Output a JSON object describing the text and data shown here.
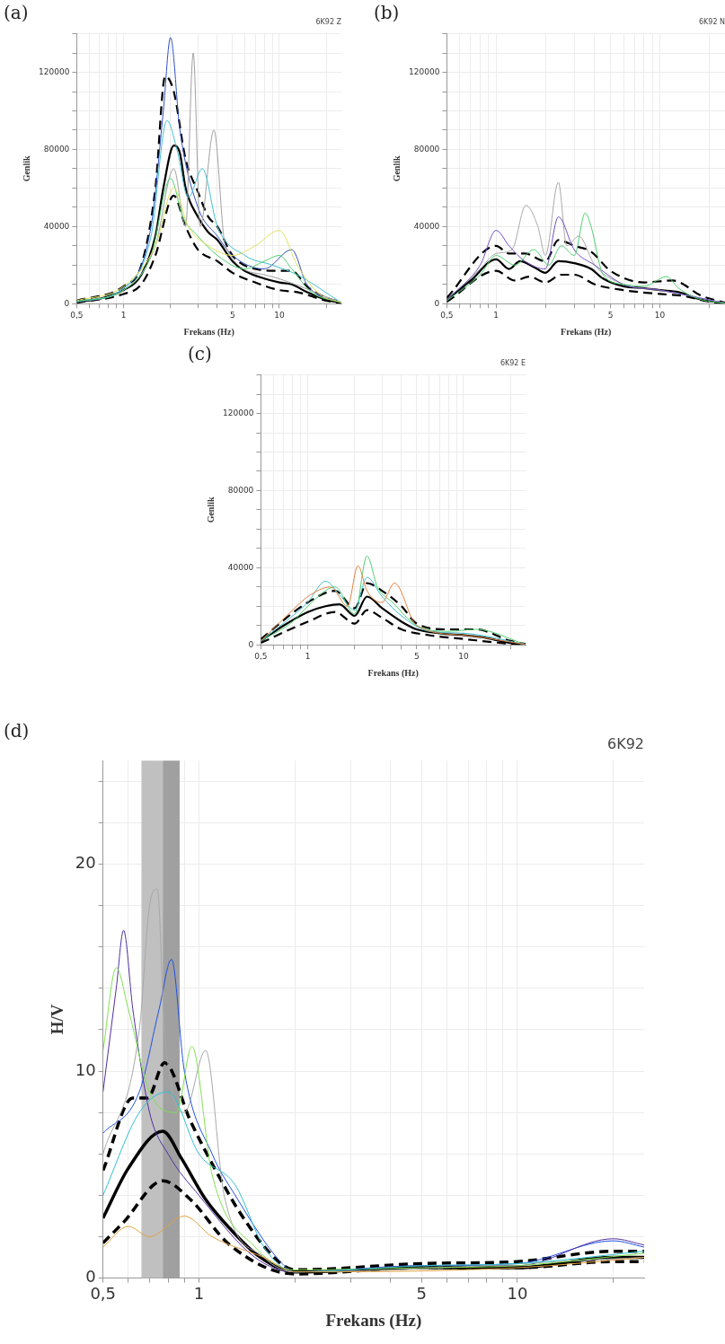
{
  "chart_data": [
    {
      "type": "line",
      "title": "6K92 Z",
      "annotations": [
        "(a)"
      ],
      "xlabel": "Frekans (Hz)",
      "ylabel": "Genlik",
      "log": "x",
      "grid": true,
      "marker": "none",
      "legend": false,
      "xlim": [
        0.5,
        25
      ],
      "xticks": [
        {
          "value": 0.5,
          "label": "0,5"
        },
        {
          "value": 0.6,
          "label": null
        },
        {
          "value": 0.7,
          "label": null
        },
        {
          "value": 0.8,
          "label": null
        },
        {
          "value": 0.9,
          "label": null
        },
        1,
        {
          "value": 2,
          "label": null
        },
        {
          "value": 3,
          "label": null
        },
        {
          "value": 4,
          "label": null
        },
        5,
        {
          "value": 6,
          "label": null
        },
        {
          "value": 7,
          "label": null
        },
        {
          "value": 8,
          "label": null
        },
        {
          "value": 9,
          "label": null
        },
        10,
        {
          "value": 20,
          "label": null
        }
      ],
      "ylim": [
        0,
        140000
      ],
      "yticks": [
        0,
        {
          "value": 10000,
          "label": null
        },
        {
          "value": 20000,
          "label": null
        },
        {
          "value": 30000,
          "label": null
        },
        40000,
        {
          "value": 50000,
          "label": null
        },
        {
          "value": 60000,
          "label": null
        },
        {
          "value": 70000,
          "label": null
        },
        80000,
        {
          "value": 90000,
          "label": null
        },
        {
          "value": 100000,
          "label": null
        },
        {
          "value": 110000,
          "label": null
        },
        120000,
        {
          "value": 130000,
          "label": null
        },
        {
          "value": 140000,
          "label": null
        }
      ],
      "series": [
        {
          "color": "#e0e060",
          "x": [
            0.5,
            1,
            1.6,
            2.1,
            2.6,
            3.5,
            5,
            7,
            10,
            13,
            18,
            25
          ],
          "values": [
            1500,
            9000,
            30000,
            60000,
            40000,
            30000,
            25000,
            30000,
            38000,
            20000,
            5000,
            500
          ]
        },
        {
          "color": "#50d070",
          "x": [
            0.5,
            1,
            1.5,
            2.0,
            2.4,
            3,
            4,
            6,
            8,
            10,
            12,
            16,
            25
          ],
          "values": [
            1000,
            7000,
            25000,
            65000,
            45000,
            35000,
            25000,
            18000,
            22000,
            25000,
            18000,
            6000,
            500
          ]
        },
        {
          "color": "#40c0d0",
          "x": [
            0.5,
            1,
            1.5,
            1.9,
            2.2,
            2.6,
            3.2,
            4,
            6,
            9,
            13,
            25
          ],
          "values": [
            1000,
            8000,
            35000,
            95000,
            80000,
            55000,
            70000,
            40000,
            25000,
            20000,
            15000,
            500
          ]
        },
        {
          "color": "#a0a0a0",
          "x": [
            0.5,
            1,
            1.6,
            2.1,
            2.5,
            2.8,
            3.1,
            3.8,
            4.5,
            8,
            25
          ],
          "values": [
            1000,
            7000,
            30000,
            70000,
            40000,
            130000,
            40000,
            90000,
            30000,
            15000,
            500
          ]
        },
        {
          "color": "#3050c0",
          "x": [
            0.5,
            1,
            1.5,
            1.8,
            2.0,
            2.3,
            3,
            4,
            5,
            8,
            12,
            15,
            25
          ],
          "values": [
            800,
            8000,
            40000,
            100000,
            138000,
            90000,
            50000,
            35000,
            25000,
            18000,
            28000,
            10000,
            500
          ]
        },
        {
          "color": "#000000",
          "line_style": "dashed",
          "x": [
            0.5,
            1,
            1.3,
            1.6,
            1.85,
            2.1,
            2.5,
            3,
            3.5,
            4,
            5,
            7,
            10,
            12,
            15,
            20,
            25
          ],
          "values": [
            1500,
            9000,
            20000,
            60000,
            118000,
            110000,
            75000,
            58000,
            45000,
            40000,
            25000,
            18000,
            17000,
            17000,
            9000,
            3000,
            800
          ]
        },
        {
          "color": "#000000",
          "line_style": "dashed",
          "x": [
            0.5,
            1,
            1.3,
            1.6,
            2.1,
            2.5,
            3,
            4,
            5,
            7,
            10,
            13,
            20,
            25
          ],
          "values": [
            500,
            5000,
            10000,
            25000,
            56000,
            40000,
            28000,
            22000,
            16000,
            11000,
            7000,
            6000,
            1500,
            300
          ]
        },
        {
          "color": "#000000",
          "line_style": "solid",
          "x": [
            0.5,
            0.7,
            1,
            1.3,
            1.6,
            1.8,
            2.1,
            2.3,
            2.5,
            3,
            3.5,
            4,
            5,
            6,
            8,
            10,
            12,
            15,
            20,
            25
          ],
          "values": [
            1000,
            2500,
            7000,
            15000,
            35000,
            60000,
            82000,
            78000,
            60000,
            45000,
            37000,
            33000,
            22000,
            17000,
            13000,
            11000,
            10000,
            6000,
            2000,
            500
          ]
        }
      ]
    },
    {
      "type": "line",
      "title": "6K92 N",
      "annotations": [
        "(b)"
      ],
      "xlabel": "Frekans (Hz)",
      "ylabel": "Genlik",
      "log": "x",
      "grid": true,
      "marker": "none",
      "legend": false,
      "xlim": [
        0.5,
        25
      ],
      "xticks": [
        {
          "value": 0.5,
          "label": "0,5"
        },
        {
          "value": 0.6,
          "label": null
        },
        {
          "value": 0.7,
          "label": null
        },
        {
          "value": 0.8,
          "label": null
        },
        {
          "value": 0.9,
          "label": null
        },
        1,
        {
          "value": 2,
          "label": null
        },
        {
          "value": 3,
          "label": null
        },
        {
          "value": 4,
          "label": null
        },
        5,
        {
          "value": 6,
          "label": null
        },
        {
          "value": 7,
          "label": null
        },
        {
          "value": 8,
          "label": null
        },
        {
          "value": 9,
          "label": null
        },
        10,
        {
          "value": 20,
          "label": null
        }
      ],
      "ylim": [
        0,
        140000
      ],
      "yticks": [
        0,
        {
          "value": 10000,
          "label": null
        },
        {
          "value": 20000,
          "label": null
        },
        {
          "value": 30000,
          "label": null
        },
        40000,
        {
          "value": 50000,
          "label": null
        },
        {
          "value": 60000,
          "label": null
        },
        {
          "value": 70000,
          "label": null
        },
        80000,
        {
          "value": 90000,
          "label": null
        },
        {
          "value": 100000,
          "label": null
        },
        {
          "value": 110000,
          "label": null
        },
        120000,
        {
          "value": 130000,
          "label": null
        },
        {
          "value": 140000,
          "label": null
        }
      ],
      "series": [
        {
          "color": "#50d070",
          "x": [
            0.5,
            0.8,
            1,
            1.3,
            1.7,
            2.1,
            2.5,
            3,
            3.5,
            3.8,
            4.5,
            6,
            8,
            11,
            13,
            18,
            25
          ],
          "values": [
            1500,
            15000,
            25000,
            20000,
            28000,
            20000,
            30000,
            25000,
            47000,
            40000,
            15000,
            10000,
            9000,
            14000,
            8000,
            2000,
            300
          ]
        },
        {
          "color": "#7050c0",
          "x": [
            0.5,
            0.8,
            1,
            1.2,
            1.5,
            2,
            2.4,
            3,
            4,
            6,
            10,
            25
          ],
          "values": [
            2000,
            20000,
            38000,
            30000,
            22000,
            18000,
            45000,
            28000,
            20000,
            10000,
            7000,
            300
          ]
        },
        {
          "color": "#a8a8a8",
          "x": [
            0.5,
            0.8,
            1,
            1.25,
            1.52,
            1.8,
            2.0,
            2.4,
            2.7,
            3.2,
            4,
            6,
            10,
            25
          ],
          "values": [
            2000,
            18000,
            26000,
            28000,
            51000,
            40000,
            25000,
            63000,
            30000,
            35000,
            20000,
            10000,
            7000,
            300
          ]
        },
        {
          "color": "#000000",
          "line_style": "dashed",
          "x": [
            0.5,
            1,
            1.2,
            1.5,
            2,
            2.4,
            3,
            3.8,
            5,
            8,
            12,
            18,
            25
          ],
          "values": [
            3000,
            30000,
            26000,
            26000,
            22000,
            33000,
            30000,
            27000,
            17000,
            11000,
            12000,
            4000,
            500
          ]
        },
        {
          "color": "#000000",
          "line_style": "dashed",
          "x": [
            0.5,
            1,
            1.3,
            1.6,
            2,
            2.5,
            3,
            4,
            6,
            10,
            14,
            20,
            25
          ],
          "values": [
            1000,
            17000,
            12000,
            14000,
            11000,
            15000,
            15000,
            10000,
            7000,
            5000,
            4000,
            1000,
            100
          ]
        },
        {
          "color": "#000000",
          "line_style": "solid",
          "x": [
            0.5,
            0.7,
            1,
            1.2,
            1.4,
            1.7,
            2,
            2.4,
            3,
            3.8,
            4.5,
            6,
            8,
            10,
            13,
            18,
            25
          ],
          "values": [
            2000,
            12000,
            23000,
            18000,
            22000,
            19000,
            16000,
            22000,
            21000,
            18000,
            13000,
            9000,
            8000,
            7000,
            6000,
            2000,
            300
          ]
        }
      ]
    },
    {
      "type": "line",
      "title": "6K92 E",
      "annotations": [
        "(c)"
      ],
      "xlabel": "Frekans (Hz)",
      "ylabel": "Genlik",
      "log": "x",
      "grid": true,
      "marker": "none",
      "legend": false,
      "xlim": [
        0.5,
        25
      ],
      "xticks": [
        {
          "value": 0.5,
          "label": "0,5"
        },
        {
          "value": 0.6,
          "label": null
        },
        {
          "value": 0.7,
          "label": null
        },
        {
          "value": 0.8,
          "label": null
        },
        {
          "value": 0.9,
          "label": null
        },
        1,
        {
          "value": 2,
          "label": null
        },
        {
          "value": 3,
          "label": null
        },
        {
          "value": 4,
          "label": null
        },
        5,
        {
          "value": 6,
          "label": null
        },
        {
          "value": 7,
          "label": null
        },
        {
          "value": 8,
          "label": null
        },
        {
          "value": 9,
          "label": null
        },
        10,
        {
          "value": 20,
          "label": null
        }
      ],
      "ylim": [
        0,
        140000
      ],
      "yticks": [
        0,
        {
          "value": 10000,
          "label": null
        },
        {
          "value": 20000,
          "label": null
        },
        {
          "value": 30000,
          "label": null
        },
        40000,
        {
          "value": 50000,
          "label": null
        },
        {
          "value": 60000,
          "label": null
        },
        {
          "value": 70000,
          "label": null
        },
        80000,
        {
          "value": 90000,
          "label": null
        },
        {
          "value": 100000,
          "label": null
        },
        {
          "value": 110000,
          "label": null
        },
        120000,
        {
          "value": 130000,
          "label": null
        },
        {
          "value": 140000,
          "label": null
        }
      ],
      "series": [
        {
          "color": "#e08040",
          "x": [
            0.5,
            0.8,
            1,
            1.4,
            1.8,
            2.1,
            2.4,
            3,
            3.6,
            5,
            10,
            25
          ],
          "values": [
            2000,
            18000,
            25000,
            30000,
            20000,
            41000,
            28000,
            22000,
            32000,
            10000,
            5000,
            200
          ]
        },
        {
          "color": "#40c0d0",
          "x": [
            0.5,
            0.8,
            1,
            1.3,
            1.6,
            2,
            2.4,
            3,
            4,
            6,
            10,
            25
          ],
          "values": [
            2000,
            15000,
            22000,
            33000,
            26000,
            18000,
            35000,
            25000,
            15000,
            7000,
            6000,
            200
          ]
        },
        {
          "color": "#50d070",
          "x": [
            0.5,
            0.8,
            1,
            1.5,
            2,
            2.4,
            2.8,
            3.5,
            5,
            8,
            12,
            25
          ],
          "values": [
            2000,
            12000,
            20000,
            30000,
            16000,
            46000,
            30000,
            22000,
            10000,
            7000,
            8000,
            200
          ]
        },
        {
          "color": "#000000",
          "line_style": "dashed",
          "x": [
            0.5,
            1,
            1.5,
            2,
            2.4,
            3,
            4,
            5,
            8,
            12,
            20,
            25
          ],
          "values": [
            3000,
            22000,
            28000,
            19000,
            32000,
            28000,
            20000,
            11000,
            8000,
            8000,
            2000,
            400
          ]
        },
        {
          "color": "#000000",
          "line_style": "dashed",
          "x": [
            0.5,
            1,
            1.5,
            2,
            2.4,
            3,
            4,
            6,
            10,
            20,
            25
          ],
          "values": [
            1000,
            12000,
            17000,
            11000,
            18000,
            14000,
            8000,
            5000,
            3000,
            500,
            100
          ]
        },
        {
          "color": "#000000",
          "line_style": "solid",
          "x": [
            0.5,
            0.7,
            1,
            1.3,
            1.6,
            2,
            2.4,
            3,
            4,
            5,
            7,
            10,
            13,
            20,
            25
          ],
          "values": [
            2000,
            10000,
            17000,
            20000,
            21000,
            15000,
            25000,
            19000,
            12000,
            8000,
            6000,
            5000,
            4000,
            1000,
            200
          ]
        }
      ]
    },
    {
      "type": "line",
      "title": "6K92",
      "annotations": [
        "(d)"
      ],
      "xlabel": "Frekans (Hz)",
      "ylabel": "H/V",
      "log": "x",
      "grid": true,
      "marker": "none",
      "legend": false,
      "xlim": [
        0.5,
        25
      ],
      "xticks": [
        {
          "value": 0.5,
          "label": "0,5"
        },
        {
          "value": 0.6,
          "label": null
        },
        {
          "value": 0.7,
          "label": null
        },
        {
          "value": 0.8,
          "label": null
        },
        {
          "value": 0.9,
          "label": null
        },
        1,
        {
          "value": 2,
          "label": null
        },
        {
          "value": 3,
          "label": null
        },
        {
          "value": 4,
          "label": null
        },
        5,
        {
          "value": 6,
          "label": null
        },
        {
          "value": 7,
          "label": null
        },
        {
          "value": 8,
          "label": null
        },
        {
          "value": 9,
          "label": null
        },
        10,
        {
          "value": 20,
          "label": null
        }
      ],
      "ylim": [
        0,
        25
      ],
      "yticks": [
        0,
        {
          "value": 2,
          "label": null
        },
        {
          "value": 4,
          "label": null
        },
        {
          "value": 6,
          "label": null
        },
        {
          "value": 8,
          "label": null
        },
        10,
        {
          "value": 12,
          "label": null
        },
        {
          "value": 14,
          "label": null
        },
        {
          "value": 16,
          "label": null
        },
        {
          "value": 18,
          "label": null
        },
        20,
        {
          "value": 22,
          "label": null
        },
        {
          "value": 24,
          "label": null
        }
      ],
      "bands": [
        {
          "axis": "x",
          "from": 0.66,
          "to": 0.77,
          "label": null,
          "color": "#c0c0c0"
        },
        {
          "axis": "x",
          "from": 0.77,
          "to": 0.87,
          "label": null,
          "color": "#a0a0a0"
        }
      ],
      "series": [
        {
          "color": "#e0a040",
          "x": [
            0.5,
            0.6,
            0.7,
            0.9,
            1.1,
            1.6,
            2,
            10,
            25
          ],
          "values": [
            1.5,
            2.5,
            2,
            3,
            2,
            1,
            0.3,
            0.5,
            1
          ]
        },
        {
          "color": "#30c0d0",
          "x": [
            0.5,
            0.65,
            0.8,
            1,
            1.3,
            1.6,
            2,
            5,
            10,
            25
          ],
          "values": [
            4,
            8,
            9,
            6,
            4.5,
            1.5,
            0.3,
            0.6,
            0.7,
            1.3
          ]
        },
        {
          "color": "#80e050",
          "x": [
            0.5,
            0.55,
            0.6,
            0.7,
            0.85,
            0.95,
            1.1,
            1.5,
            2,
            5,
            10,
            25
          ],
          "values": [
            11,
            15,
            13,
            9,
            8,
            11.2,
            5,
            1.5,
            0.4,
            0.5,
            0.6,
            1.2
          ]
        },
        {
          "color": "#a8a8a8",
          "x": [
            0.5,
            0.65,
            0.7,
            0.74,
            0.78,
            0.9,
            1.05,
            1.2,
            1.6,
            2,
            5,
            10,
            25
          ],
          "values": [
            6,
            12,
            18,
            18.8,
            12,
            8,
            11,
            4,
            1,
            0.3,
            null,
            null,
            1
          ]
        },
        {
          "color": "#5030a0",
          "x": [
            0.5,
            0.55,
            0.58,
            0.62,
            0.7,
            0.8,
            1,
            1.5,
            2,
            5,
            10,
            20,
            25
          ],
          "values": [
            9,
            14,
            16.8,
            13,
            8,
            6,
            4,
            1,
            0.3,
            0.6,
            0.6,
            1.9,
            1.6
          ]
        },
        {
          "color": "#2050e0",
          "x": [
            0.5,
            0.65,
            0.75,
            0.82,
            0.9,
            1.1,
            1.3,
            1.8,
            2,
            5,
            10,
            20,
            25
          ],
          "values": [
            7,
            9,
            13,
            15.4,
            10,
            6,
            4,
            0.8,
            0.3,
            0.6,
            0.7,
            1.8,
            1.5
          ]
        },
        {
          "color": "#000000",
          "line_style": "dashed",
          "x": [
            0.5,
            0.62,
            0.69,
            0.78,
            0.94,
            1.12,
            1.38,
            1.75,
            2,
            5,
            10,
            20,
            25
          ],
          "values": [
            5.2,
            8.7,
            8.7,
            10.4,
            7.6,
            5.3,
            2.9,
            0.9,
            0.4,
            0.7,
            0.8,
            1.3,
            1.3
          ]
        },
        {
          "color": "#000000",
          "line_style": "dashed",
          "x": [
            0.5,
            0.58,
            0.77,
            0.94,
            1.25,
            2,
            5,
            10,
            20,
            25
          ],
          "values": [
            1.7,
            2.7,
            4.7,
            3.8,
            1.6,
            0.2,
            0.5,
            0.5,
            0.8,
            0.8
          ]
        },
        {
          "color": "#000000",
          "line_style": "solid",
          "x": [
            0.5,
            0.6,
            0.77,
            0.88,
            1.05,
            1.25,
            1.53,
            2,
            5,
            10,
            20,
            25
          ],
          "values": [
            2.9,
            5.3,
            7.1,
            5.8,
            3.8,
            2.4,
            1.1,
            0.3,
            0.5,
            0.5,
            1,
            1
          ]
        }
      ]
    }
  ]
}
